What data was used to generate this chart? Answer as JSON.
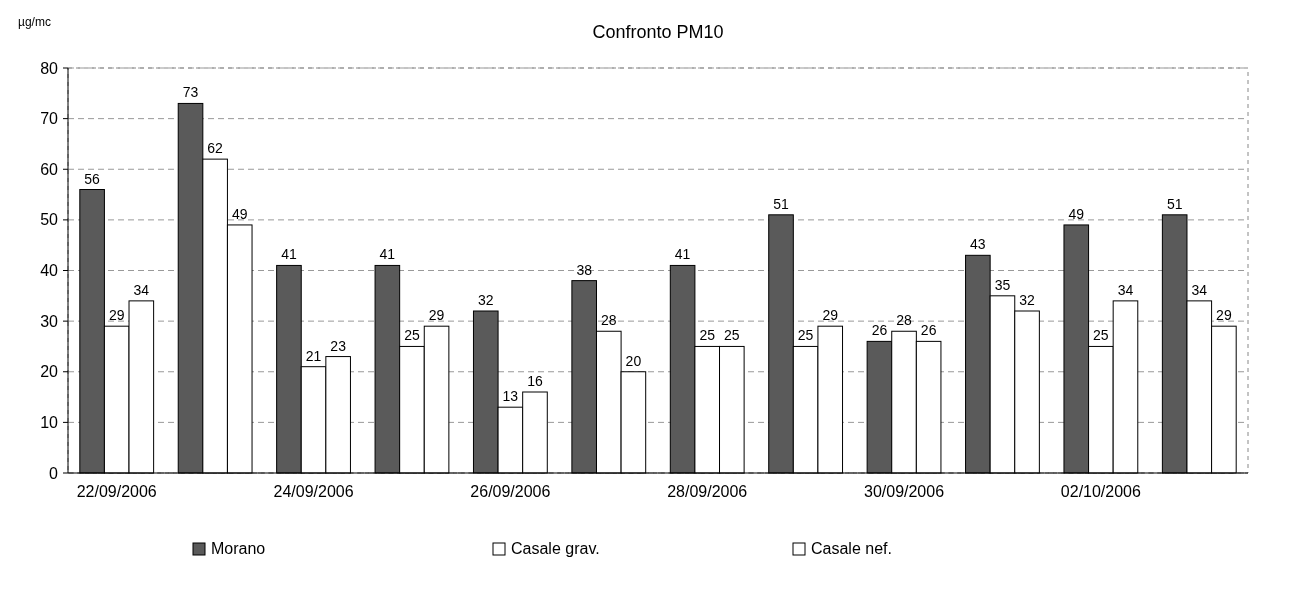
{
  "chart_data": {
    "type": "bar",
    "title": "Confronto PM10",
    "ylabel": "µg/mc",
    "categories": [
      "22/09/2006",
      null,
      "24/09/2006",
      null,
      "26/09/2006",
      null,
      "28/09/2006",
      null,
      "30/09/2006",
      null,
      "02/10/2006",
      null
    ],
    "series": [
      {
        "name": "Morano",
        "color": "#5a5a5a",
        "values": [
          56,
          73,
          41,
          41,
          32,
          38,
          41,
          51,
          26,
          43,
          49,
          51
        ]
      },
      {
        "name": "Casale grav.",
        "color": "#ffffff",
        "values": [
          29,
          62,
          21,
          25,
          13,
          28,
          25,
          25,
          28,
          35,
          25,
          34
        ]
      },
      {
        "name": "Casale nef.",
        "color": "#ffffff",
        "values": [
          34,
          49,
          23,
          29,
          16,
          20,
          25,
          29,
          26,
          32,
          34,
          29
        ]
      }
    ],
    "ylim": [
      0,
      80
    ],
    "yticks": [
      0,
      10,
      20,
      30,
      40,
      50,
      60,
      70,
      80
    ],
    "grid": "y",
    "legend": "bottom",
    "data_labels": true
  }
}
